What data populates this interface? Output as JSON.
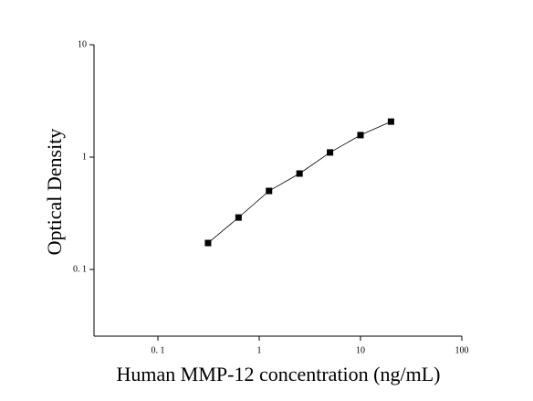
{
  "chart_data": {
    "type": "scatter",
    "x_label": "Human MMP-12 concentration (ng/mL)",
    "y_label": "Optical Density",
    "x_scale": "log",
    "y_scale": "log",
    "xlim": [
      0.0234,
      100
    ],
    "ylim": [
      0.0255,
      10
    ],
    "xticks": [
      {
        "value": 0.1,
        "label": "0. 1"
      },
      1,
      10,
      100
    ],
    "yticks": [
      {
        "value": 0.1,
        "label": "0. 1"
      },
      1,
      10
    ],
    "connect": true,
    "series": [
      {
        "color": "#000000",
        "x": [
          0.3125,
          0.625,
          1.25,
          2.5,
          5,
          10,
          20
        ],
        "values": [
          0.172,
          0.29,
          0.5,
          0.714,
          1.1,
          1.57,
          2.07
        ]
      }
    ]
  }
}
